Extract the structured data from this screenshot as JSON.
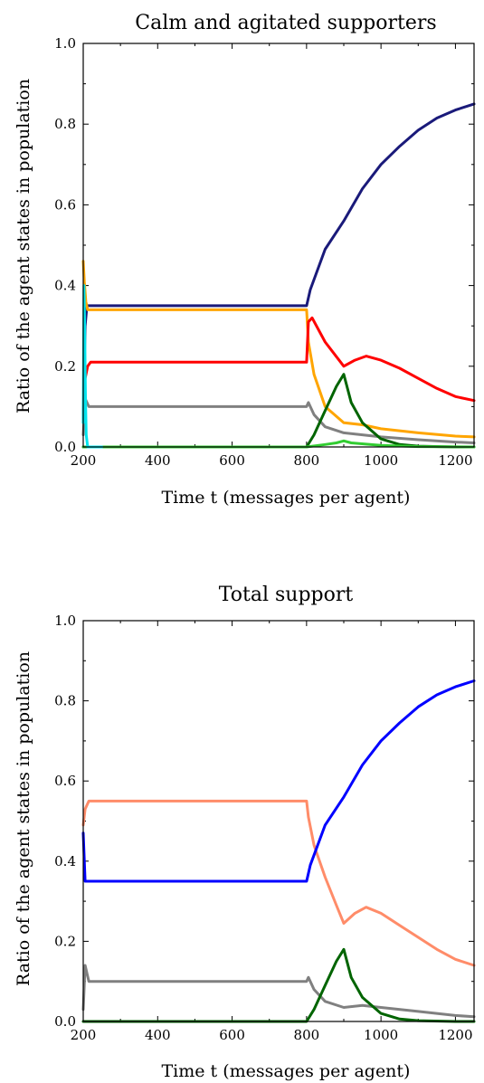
{
  "chart_data": [
    {
      "type": "line",
      "title": "Calm and agitated supporters",
      "xlabel": "Time t (messages per agent)",
      "ylabel": "Ratio of the agent states in population",
      "xlim": [
        200,
        1250
      ],
      "ylim": [
        0,
        1.0
      ],
      "xticks": [
        "200",
        "400",
        "600",
        "800",
        "1000",
        "1200"
      ],
      "yticks": [
        "0.0",
        "0.2",
        "0.4",
        "0.6",
        "0.8",
        "1.0"
      ],
      "grid": false,
      "series": [
        {
          "color": "#1a1a7a",
          "x": [
            200,
            205,
            210,
            800,
            810,
            850,
            900,
            950,
            1000,
            1050,
            1100,
            1150,
            1200,
            1250
          ],
          "y": [
            0.07,
            0.3,
            0.35,
            0.35,
            0.39,
            0.49,
            0.56,
            0.64,
            0.7,
            0.745,
            0.785,
            0.815,
            0.835,
            0.85
          ]
        },
        {
          "color": "#ffa500",
          "x": [
            200,
            203,
            207,
            212,
            800,
            805,
            820,
            850,
            900,
            950,
            1000,
            1100,
            1200,
            1250
          ],
          "y": [
            0.46,
            0.41,
            0.36,
            0.34,
            0.34,
            0.26,
            0.18,
            0.1,
            0.06,
            0.055,
            0.045,
            0.035,
            0.027,
            0.025
          ]
        },
        {
          "color": "#ff0000",
          "x": [
            200,
            205,
            212,
            220,
            800,
            805,
            815,
            850,
            900,
            930,
            960,
            1000,
            1050,
            1100,
            1150,
            1200,
            1250
          ],
          "y": [
            0.08,
            0.17,
            0.2,
            0.21,
            0.21,
            0.31,
            0.32,
            0.26,
            0.2,
            0.215,
            0.225,
            0.215,
            0.195,
            0.17,
            0.145,
            0.125,
            0.115
          ]
        },
        {
          "color": "#808080",
          "x": [
            200,
            205,
            215,
            230,
            800,
            805,
            820,
            850,
            900,
            950,
            1000,
            1100,
            1200,
            1250
          ],
          "y": [
            0.03,
            0.12,
            0.1,
            0.1,
            0.1,
            0.11,
            0.08,
            0.05,
            0.035,
            0.03,
            0.025,
            0.018,
            0.012,
            0.01
          ]
        },
        {
          "color": "#006400",
          "x": [
            200,
            800,
            820,
            850,
            880,
            900,
            920,
            950,
            1000,
            1050,
            1100,
            1200,
            1250
          ],
          "y": [
            0.0,
            0.0,
            0.03,
            0.09,
            0.15,
            0.18,
            0.11,
            0.06,
            0.02,
            0.006,
            0.002,
            0.0,
            0.0
          ]
        },
        {
          "color": "#32cd32",
          "x": [
            200,
            800,
            850,
            880,
            900,
            920,
            1000,
            1100,
            1250
          ],
          "y": [
            0.0,
            0.0,
            0.006,
            0.01,
            0.015,
            0.01,
            0.004,
            0.001,
            0.0
          ]
        },
        {
          "color": "#00e5ee",
          "x": [
            200,
            202,
            204,
            206,
            208,
            212,
            250
          ],
          "y": [
            0.06,
            0.4,
            0.3,
            0.12,
            0.03,
            0.0,
            0.0
          ]
        }
      ]
    },
    {
      "type": "line",
      "title": "Total support",
      "xlabel": "Time t (messages per agent)",
      "ylabel": "Ratio of the agent states in population",
      "xlim": [
        200,
        1250
      ],
      "ylim": [
        0,
        1.0
      ],
      "xticks": [
        "200",
        "400",
        "600",
        "800",
        "1000",
        "1200"
      ],
      "yticks": [
        "0.0",
        "0.2",
        "0.4",
        "0.6",
        "0.8",
        "1.0"
      ],
      "grid": false,
      "series": [
        {
          "color": "#ff8c69",
          "x": [
            200,
            205,
            215,
            230,
            800,
            805,
            820,
            850,
            880,
            900,
            930,
            960,
            1000,
            1050,
            1100,
            1150,
            1200,
            1250
          ],
          "y": [
            0.49,
            0.53,
            0.55,
            0.55,
            0.55,
            0.51,
            0.44,
            0.36,
            0.29,
            0.245,
            0.27,
            0.285,
            0.27,
            0.24,
            0.21,
            0.18,
            0.155,
            0.14
          ]
        },
        {
          "color": "#0000ff",
          "x": [
            200,
            205,
            210,
            800,
            810,
            850,
            900,
            950,
            1000,
            1050,
            1100,
            1150,
            1200,
            1250
          ],
          "y": [
            0.47,
            0.35,
            0.35,
            0.35,
            0.39,
            0.49,
            0.56,
            0.64,
            0.7,
            0.745,
            0.785,
            0.815,
            0.835,
            0.85
          ]
        },
        {
          "color": "#808080",
          "x": [
            200,
            205,
            215,
            230,
            800,
            805,
            820,
            850,
            900,
            950,
            1000,
            1100,
            1200,
            1250
          ],
          "y": [
            0.03,
            0.14,
            0.1,
            0.1,
            0.1,
            0.11,
            0.08,
            0.05,
            0.035,
            0.04,
            0.035,
            0.025,
            0.015,
            0.012
          ]
        },
        {
          "color": "#006400",
          "x": [
            200,
            800,
            820,
            850,
            880,
            900,
            920,
            950,
            1000,
            1050,
            1100,
            1200,
            1250
          ],
          "y": [
            0.0,
            0.0,
            0.03,
            0.09,
            0.15,
            0.18,
            0.11,
            0.06,
            0.02,
            0.006,
            0.002,
            0.0,
            0.0
          ]
        }
      ]
    }
  ]
}
